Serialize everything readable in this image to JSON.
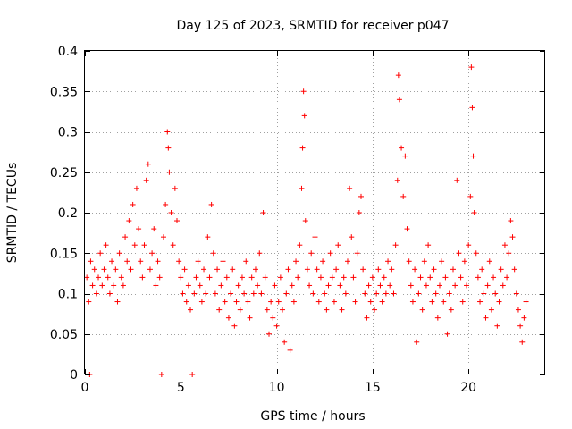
{
  "chart_data": {
    "type": "scatter",
    "title": "Day 125 of 2023, SRMTID for receiver p047",
    "xlabel": "GPS time / hours",
    "ylabel": "SRMTID / TECUs",
    "xlim": [
      0,
      24
    ],
    "ylim": [
      0,
      0.4
    ],
    "xticks": [
      0,
      5,
      10,
      15,
      20
    ],
    "xtick_labels": [
      "0",
      "5",
      "10",
      "15",
      "20"
    ],
    "yticks": [
      0,
      0.05,
      0.1,
      0.15,
      0.2,
      0.25,
      0.3,
      0.35,
      0.4
    ],
    "ytick_labels": [
      "0",
      "0.05",
      "0.1",
      "0.15",
      "0.2",
      "0.25",
      "0.3",
      "0.35",
      "0.4"
    ],
    "grid": true,
    "marker": "+",
    "color": "#ff0000",
    "series": [
      {
        "name": "SRMTID p047",
        "points": [
          [
            0.1,
            0.12
          ],
          [
            0.2,
            0.09
          ],
          [
            0.25,
            0.0
          ],
          [
            0.3,
            0.14
          ],
          [
            0.4,
            0.11
          ],
          [
            0.5,
            0.13
          ],
          [
            0.6,
            0.1
          ],
          [
            0.7,
            0.12
          ],
          [
            0.8,
            0.15
          ],
          [
            0.9,
            0.11
          ],
          [
            1.0,
            0.13
          ],
          [
            1.1,
            0.16
          ],
          [
            1.2,
            0.12
          ],
          [
            1.3,
            0.1
          ],
          [
            1.4,
            0.14
          ],
          [
            1.5,
            0.11
          ],
          [
            1.6,
            0.13
          ],
          [
            1.7,
            0.09
          ],
          [
            1.8,
            0.15
          ],
          [
            1.9,
            0.12
          ],
          [
            2.0,
            0.11
          ],
          [
            2.1,
            0.17
          ],
          [
            2.2,
            0.14
          ],
          [
            2.3,
            0.19
          ],
          [
            2.4,
            0.13
          ],
          [
            2.5,
            0.21
          ],
          [
            2.6,
            0.16
          ],
          [
            2.7,
            0.23
          ],
          [
            2.8,
            0.18
          ],
          [
            2.9,
            0.14
          ],
          [
            3.0,
            0.12
          ],
          [
            3.1,
            0.16
          ],
          [
            3.2,
            0.24
          ],
          [
            3.3,
            0.26
          ],
          [
            3.4,
            0.13
          ],
          [
            3.5,
            0.15
          ],
          [
            3.6,
            0.18
          ],
          [
            3.7,
            0.11
          ],
          [
            3.8,
            0.14
          ],
          [
            3.9,
            0.12
          ],
          [
            4.0,
            0.0
          ],
          [
            4.1,
            0.17
          ],
          [
            4.2,
            0.21
          ],
          [
            4.3,
            0.3
          ],
          [
            4.35,
            0.28
          ],
          [
            4.4,
            0.25
          ],
          [
            4.5,
            0.2
          ],
          [
            4.6,
            0.16
          ],
          [
            4.7,
            0.23
          ],
          [
            4.8,
            0.19
          ],
          [
            4.9,
            0.14
          ],
          [
            5.0,
            0.12
          ],
          [
            5.1,
            0.1
          ],
          [
            5.2,
            0.13
          ],
          [
            5.3,
            0.09
          ],
          [
            5.4,
            0.11
          ],
          [
            5.5,
            0.08
          ],
          [
            5.6,
            0.0
          ],
          [
            5.7,
            0.1
          ],
          [
            5.8,
            0.12
          ],
          [
            5.9,
            0.14
          ],
          [
            6.0,
            0.11
          ],
          [
            6.1,
            0.09
          ],
          [
            6.2,
            0.13
          ],
          [
            6.3,
            0.1
          ],
          [
            6.4,
            0.17
          ],
          [
            6.5,
            0.12
          ],
          [
            6.6,
            0.21
          ],
          [
            6.7,
            0.15
          ],
          [
            6.8,
            0.1
          ],
          [
            6.9,
            0.13
          ],
          [
            7.0,
            0.08
          ],
          [
            7.1,
            0.11
          ],
          [
            7.2,
            0.14
          ],
          [
            7.3,
            0.09
          ],
          [
            7.4,
            0.12
          ],
          [
            7.5,
            0.07
          ],
          [
            7.6,
            0.1
          ],
          [
            7.7,
            0.13
          ],
          [
            7.8,
            0.06
          ],
          [
            7.9,
            0.09
          ],
          [
            8.0,
            0.11
          ],
          [
            8.1,
            0.08
          ],
          [
            8.2,
            0.12
          ],
          [
            8.3,
            0.1
          ],
          [
            8.4,
            0.14
          ],
          [
            8.5,
            0.09
          ],
          [
            8.6,
            0.07
          ],
          [
            8.7,
            0.12
          ],
          [
            8.8,
            0.1
          ],
          [
            8.9,
            0.13
          ],
          [
            9.0,
            0.11
          ],
          [
            9.1,
            0.15
          ],
          [
            9.2,
            0.1
          ],
          [
            9.3,
            0.2
          ],
          [
            9.4,
            0.12
          ],
          [
            9.5,
            0.08
          ],
          [
            9.6,
            0.05
          ],
          [
            9.7,
            0.09
          ],
          [
            9.8,
            0.07
          ],
          [
            9.9,
            0.11
          ],
          [
            10.0,
            0.06
          ],
          [
            10.1,
            0.09
          ],
          [
            10.2,
            0.12
          ],
          [
            10.3,
            0.08
          ],
          [
            10.4,
            0.04
          ],
          [
            10.5,
            0.1
          ],
          [
            10.6,
            0.13
          ],
          [
            10.7,
            0.03
          ],
          [
            10.8,
            0.11
          ],
          [
            10.9,
            0.09
          ],
          [
            11.0,
            0.14
          ],
          [
            11.1,
            0.12
          ],
          [
            11.2,
            0.16
          ],
          [
            11.3,
            0.23
          ],
          [
            11.35,
            0.28
          ],
          [
            11.4,
            0.35
          ],
          [
            11.45,
            0.32
          ],
          [
            11.5,
            0.19
          ],
          [
            11.6,
            0.13
          ],
          [
            11.7,
            0.11
          ],
          [
            11.8,
            0.15
          ],
          [
            11.9,
            0.1
          ],
          [
            12.0,
            0.17
          ],
          [
            12.1,
            0.13
          ],
          [
            12.2,
            0.09
          ],
          [
            12.3,
            0.12
          ],
          [
            12.4,
            0.14
          ],
          [
            12.5,
            0.1
          ],
          [
            12.6,
            0.08
          ],
          [
            12.7,
            0.11
          ],
          [
            12.8,
            0.15
          ],
          [
            12.9,
            0.12
          ],
          [
            13.0,
            0.09
          ],
          [
            13.1,
            0.13
          ],
          [
            13.2,
            0.16
          ],
          [
            13.3,
            0.11
          ],
          [
            13.4,
            0.08
          ],
          [
            13.5,
            0.12
          ],
          [
            13.6,
            0.1
          ],
          [
            13.7,
            0.14
          ],
          [
            13.8,
            0.23
          ],
          [
            13.9,
            0.17
          ],
          [
            14.0,
            0.12
          ],
          [
            14.1,
            0.09
          ],
          [
            14.2,
            0.15
          ],
          [
            14.3,
            0.2
          ],
          [
            14.4,
            0.22
          ],
          [
            14.5,
            0.13
          ],
          [
            14.6,
            0.1
          ],
          [
            14.7,
            0.07
          ],
          [
            14.8,
            0.11
          ],
          [
            14.9,
            0.09
          ],
          [
            15.0,
            0.12
          ],
          [
            15.1,
            0.08
          ],
          [
            15.2,
            0.1
          ],
          [
            15.3,
            0.13
          ],
          [
            15.4,
            0.11
          ],
          [
            15.5,
            0.09
          ],
          [
            15.6,
            0.12
          ],
          [
            15.7,
            0.1
          ],
          [
            15.8,
            0.14
          ],
          [
            15.9,
            0.11
          ],
          [
            16.0,
            0.13
          ],
          [
            16.1,
            0.1
          ],
          [
            16.2,
            0.16
          ],
          [
            16.3,
            0.24
          ],
          [
            16.35,
            0.37
          ],
          [
            16.4,
            0.34
          ],
          [
            16.5,
            0.28
          ],
          [
            16.6,
            0.22
          ],
          [
            16.7,
            0.27
          ],
          [
            16.8,
            0.18
          ],
          [
            16.9,
            0.14
          ],
          [
            17.0,
            0.11
          ],
          [
            17.1,
            0.09
          ],
          [
            17.2,
            0.13
          ],
          [
            17.3,
            0.04
          ],
          [
            17.4,
            0.1
          ],
          [
            17.5,
            0.12
          ],
          [
            17.6,
            0.08
          ],
          [
            17.7,
            0.14
          ],
          [
            17.8,
            0.11
          ],
          [
            17.9,
            0.16
          ],
          [
            18.0,
            0.12
          ],
          [
            18.1,
            0.09
          ],
          [
            18.2,
            0.13
          ],
          [
            18.3,
            0.1
          ],
          [
            18.4,
            0.07
          ],
          [
            18.5,
            0.11
          ],
          [
            18.6,
            0.14
          ],
          [
            18.7,
            0.09
          ],
          [
            18.8,
            0.12
          ],
          [
            18.9,
            0.05
          ],
          [
            19.0,
            0.1
          ],
          [
            19.1,
            0.08
          ],
          [
            19.2,
            0.13
          ],
          [
            19.3,
            0.11
          ],
          [
            19.4,
            0.24
          ],
          [
            19.5,
            0.15
          ],
          [
            19.6,
            0.12
          ],
          [
            19.7,
            0.09
          ],
          [
            19.8,
            0.14
          ],
          [
            19.9,
            0.11
          ],
          [
            20.0,
            0.16
          ],
          [
            20.1,
            0.22
          ],
          [
            20.15,
            0.38
          ],
          [
            20.2,
            0.33
          ],
          [
            20.25,
            0.27
          ],
          [
            20.3,
            0.2
          ],
          [
            20.4,
            0.15
          ],
          [
            20.5,
            0.12
          ],
          [
            20.6,
            0.09
          ],
          [
            20.7,
            0.13
          ],
          [
            20.8,
            0.1
          ],
          [
            20.9,
            0.07
          ],
          [
            21.0,
            0.11
          ],
          [
            21.1,
            0.14
          ],
          [
            21.2,
            0.08
          ],
          [
            21.3,
            0.12
          ],
          [
            21.4,
            0.1
          ],
          [
            21.5,
            0.06
          ],
          [
            21.6,
            0.09
          ],
          [
            21.7,
            0.13
          ],
          [
            21.8,
            0.11
          ],
          [
            21.9,
            0.16
          ],
          [
            22.0,
            0.12
          ],
          [
            22.1,
            0.15
          ],
          [
            22.2,
            0.19
          ],
          [
            22.3,
            0.17
          ],
          [
            22.4,
            0.13
          ],
          [
            22.5,
            0.1
          ],
          [
            22.6,
            0.08
          ],
          [
            22.7,
            0.06
          ],
          [
            22.8,
            0.04
          ],
          [
            22.9,
            0.07
          ],
          [
            23.0,
            0.09
          ]
        ]
      }
    ]
  }
}
